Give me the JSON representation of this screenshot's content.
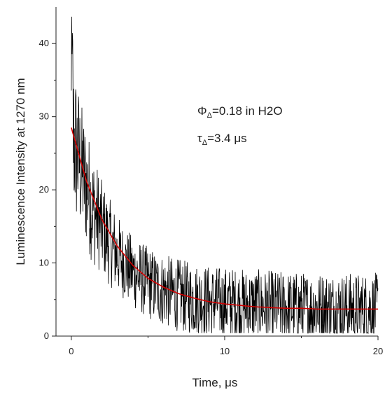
{
  "chart_data": {
    "type": "line",
    "xlabel": "Time, μs",
    "ylabel": "Luminescence Intensity at 1270 nm",
    "xlim": [
      -1,
      20
    ],
    "ylim": [
      0,
      45
    ],
    "x_ticks": [
      0,
      10,
      20
    ],
    "y_ticks": [
      0,
      10,
      20,
      30,
      40
    ],
    "grid": false,
    "legend": "none",
    "annotations": [
      {
        "symbol": "Φ",
        "subscript": "Δ",
        "text": "=0.18 in H2O"
      },
      {
        "symbol": "τ",
        "subscript": "Δ",
        "text": "=3.4 μs"
      }
    ],
    "series": [
      {
        "kind": "noisy-data",
        "color": "#000000",
        "x": [
          0,
          0.25,
          0.5,
          0.75,
          1,
          1.25,
          1.5,
          1.75,
          2,
          2.5,
          3,
          3.5,
          4,
          4.5,
          5,
          5.5,
          6,
          6.5,
          7,
          7.5,
          8,
          9,
          10,
          11,
          12,
          13,
          14,
          15,
          16,
          17,
          18,
          19,
          20
        ],
        "y": [
          29,
          26,
          24,
          22,
          20.5,
          18.5,
          17,
          16,
          14.8,
          12.8,
          11.2,
          9.9,
          8.8,
          8.0,
          7.3,
          6.7,
          6.3,
          5.9,
          5.6,
          5.3,
          5.1,
          4.7,
          4.5,
          4.3,
          4.2,
          4.0,
          3.9,
          3.8,
          3.8,
          3.8,
          3.7,
          3.7,
          3.7
        ],
        "spread": [
          12,
          11,
          10,
          9,
          8.5,
          8,
          7.5,
          7,
          6.5,
          6,
          5.5,
          5,
          5,
          5,
          5,
          5,
          5,
          5,
          5,
          5,
          5,
          5,
          5,
          5,
          5,
          5,
          5,
          5,
          5,
          5,
          5,
          5,
          5
        ]
      },
      {
        "kind": "fit",
        "color": "#d40000",
        "x": [
          0,
          1,
          2,
          3,
          4,
          5,
          6,
          7,
          8,
          9,
          10,
          11,
          12,
          13,
          14,
          15,
          16,
          17,
          18,
          19,
          20
        ],
        "y": [
          28.5,
          21.1,
          15.9,
          12.3,
          9.7,
          7.9,
          6.7,
          5.8,
          5.2,
          4.7,
          4.4,
          4.2,
          4.0,
          3.9,
          3.8,
          3.8,
          3.7,
          3.7,
          3.7,
          3.7,
          3.7
        ]
      }
    ]
  }
}
